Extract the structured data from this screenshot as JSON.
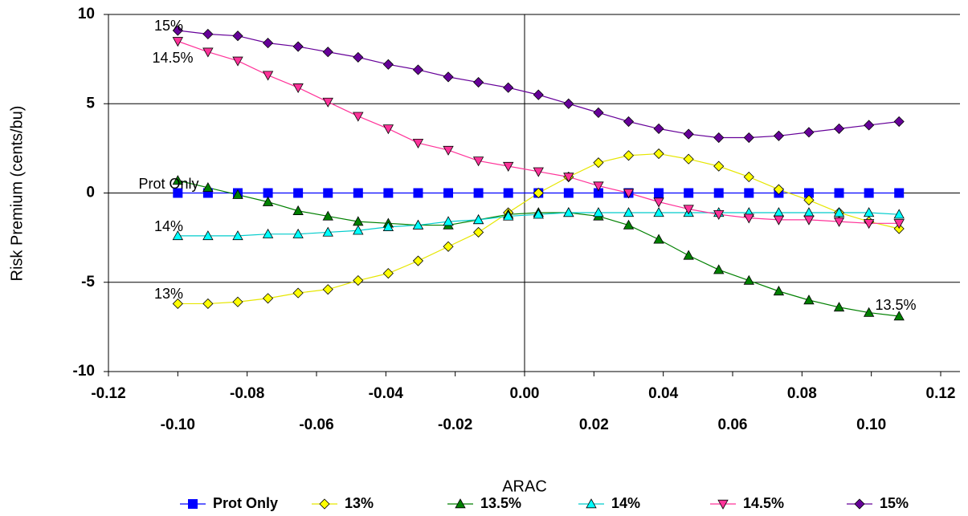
{
  "chart_data": {
    "type": "line",
    "x_label": "ARAC",
    "y_label": "Risk Premium (cents/bu)",
    "xlim": [
      -0.12,
      0.12
    ],
    "ylim": [
      -10,
      10
    ],
    "xticks": [
      {
        "value": -0.12,
        "label": "-0.12"
      },
      {
        "value": -0.1,
        "label": "-0.10"
      },
      {
        "value": -0.08,
        "label": "-0.08"
      },
      {
        "value": -0.06,
        "label": "-0.06"
      },
      {
        "value": -0.04,
        "label": "-0.04"
      },
      {
        "value": -0.02,
        "label": "-0.02"
      },
      {
        "value": 0,
        "label": "0.00"
      },
      {
        "value": 0.02,
        "label": "0.02"
      },
      {
        "value": 0.04,
        "label": "0.04"
      },
      {
        "value": 0.06,
        "label": "0.06"
      },
      {
        "value": 0.08,
        "label": "0.08"
      },
      {
        "value": 0.1,
        "label": "0.10"
      },
      {
        "value": 0.12,
        "label": "0.12"
      }
    ],
    "yticks": [
      -10,
      -5,
      0,
      5,
      10
    ],
    "grid": true,
    "legend": "bottom",
    "x": [
      -0.1,
      -0.0913,
      -0.0827,
      -0.074,
      -0.0653,
      -0.0567,
      -0.048,
      -0.0393,
      -0.0307,
      -0.022,
      -0.0133,
      -0.0047,
      0.004,
      0.0127,
      0.0213,
      0.03,
      0.0387,
      0.0473,
      0.056,
      0.0647,
      0.0733,
      0.082,
      0.0907,
      0.0993,
      0.108
    ],
    "series": [
      {
        "name": "Prot Only",
        "color": "#0000ff",
        "line_color": "#0000ff",
        "marker": "square",
        "values": [
          0,
          0,
          0,
          0,
          0,
          0,
          0,
          0,
          0,
          0,
          0,
          0,
          0,
          0,
          0,
          0,
          0,
          0,
          0,
          0,
          0,
          0,
          0,
          0,
          0
        ]
      },
      {
        "name": "13%",
        "color": "#ffff00",
        "line_color": "#e6e600",
        "marker": "diamond",
        "values": [
          -6.2,
          -6.2,
          -6.1,
          -5.9,
          -5.6,
          -5.4,
          -4.9,
          -4.5,
          -3.8,
          -3.0,
          -2.2,
          -1.1,
          0.0,
          0.9,
          1.7,
          2.1,
          2.2,
          1.9,
          1.5,
          0.9,
          0.2,
          -0.4,
          -1.1,
          -1.6,
          -2.0
        ]
      },
      {
        "name": "13.5%",
        "color": "#008000",
        "line_color": "#008000",
        "marker": "triangle-up",
        "values": [
          0.7,
          0.3,
          -0.1,
          -0.5,
          -1.0,
          -1.3,
          -1.6,
          -1.7,
          -1.8,
          -1.8,
          -1.5,
          -1.2,
          -1.1,
          -1.1,
          -1.3,
          -1.8,
          -2.6,
          -3.5,
          -4.3,
          -4.9,
          -5.5,
          -6.0,
          -6.4,
          -6.7,
          -6.9
        ]
      },
      {
        "name": "14%",
        "color": "#00ffff",
        "line_color": "#00cccc",
        "marker": "triangle-up",
        "values": [
          -2.4,
          -2.4,
          -2.4,
          -2.3,
          -2.3,
          -2.2,
          -2.1,
          -1.9,
          -1.8,
          -1.6,
          -1.5,
          -1.3,
          -1.2,
          -1.1,
          -1.1,
          -1.1,
          -1.1,
          -1.1,
          -1.1,
          -1.1,
          -1.1,
          -1.1,
          -1.1,
          -1.1,
          -1.2
        ]
      },
      {
        "name": "14.5%",
        "color": "#ff3399",
        "line_color": "#ff3399",
        "marker": "triangle-down",
        "values": [
          8.5,
          7.9,
          7.4,
          6.6,
          5.9,
          5.1,
          4.3,
          3.6,
          2.8,
          2.4,
          1.8,
          1.5,
          1.2,
          0.9,
          0.4,
          0.0,
          -0.5,
          -0.9,
          -1.2,
          -1.4,
          -1.5,
          -1.5,
          -1.6,
          -1.7,
          -1.7
        ]
      },
      {
        "name": "15%",
        "color": "#660099",
        "line_color": "#660099",
        "marker": "diamond",
        "values": [
          9.1,
          8.9,
          8.8,
          8.4,
          8.2,
          7.9,
          7.6,
          7.2,
          6.9,
          6.5,
          6.2,
          5.9,
          5.5,
          5.0,
          4.5,
          4.0,
          3.6,
          3.3,
          3.1,
          3.1,
          3.2,
          3.4,
          3.6,
          3.8,
          4.0
        ]
      }
    ],
    "annotations": [
      "15%",
      "14.5%",
      "Prot Only",
      "14%",
      "13%",
      "13.5%"
    ]
  }
}
